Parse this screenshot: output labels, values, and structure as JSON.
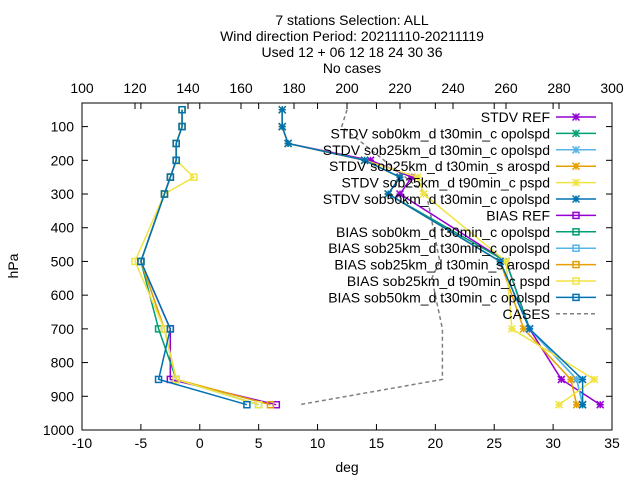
{
  "chart_data": {
    "type": "line",
    "title_lines": [
      "7 stations Selection: ALL",
      "Wind direction  Period: 20211110-20211119",
      "Used 12 + 06 12 18 24 30 36",
      "No cases"
    ],
    "xlabel": "deg",
    "ylabel": "hPa",
    "xlim": [
      -10,
      35
    ],
    "ylim": [
      1000,
      30
    ],
    "y_reversed": true,
    "top_axis": {
      "label": "CASES",
      "lim": [
        100,
        300
      ],
      "ticks": [
        100,
        120,
        140,
        160,
        180,
        200,
        220,
        240,
        260,
        280,
        300
      ]
    },
    "xticks": [
      -10,
      -5,
      0,
      5,
      10,
      15,
      20,
      25,
      30,
      35
    ],
    "yticks": [
      100,
      200,
      300,
      400,
      500,
      600,
      700,
      800,
      900,
      1000
    ],
    "legend_position": "top-right",
    "levels": [
      50,
      100,
      150,
      200,
      250,
      300,
      500,
      700,
      850,
      925
    ],
    "series": [
      {
        "name": "STDV REF",
        "kind": "stdv",
        "color": "#9400d3",
        "marker": "cross-x",
        "values": [
          7.0,
          7.0,
          7.5,
          14.5,
          18.0,
          17.0,
          26.0,
          28.0,
          30.7,
          34.0
        ]
      },
      {
        "name": "STDV sob0km_d t30min_c opolspd",
        "kind": "stdv",
        "color": "#009e73",
        "marker": "cross-x",
        "values": [
          7.0,
          7.0,
          7.5,
          14.0,
          17.0,
          16.0,
          26.0,
          28.0,
          32.0,
          32.5
        ]
      },
      {
        "name": "STDV sob25km_d t30min_c opolspd",
        "kind": "stdv",
        "color": "#56b4e9",
        "marker": "cross-x",
        "values": [
          7.0,
          7.0,
          7.5,
          14.0,
          17.0,
          16.0,
          25.5,
          28.0,
          32.0,
          32.5
        ]
      },
      {
        "name": "STDV sob25km_d t30min_s arospd",
        "kind": "stdv",
        "color": "#e69f00",
        "marker": "cross-x",
        "values": [
          7.0,
          7.0,
          7.5,
          14.0,
          17.0,
          16.0,
          25.5,
          27.5,
          31.5,
          32.0
        ]
      },
      {
        "name": "STDV sob25km_d t90min_c pspd",
        "kind": "stdv",
        "color": "#f0e442",
        "marker": "cross-x",
        "values": [
          7.0,
          7.0,
          7.5,
          14.0,
          18.5,
          19.0,
          26.0,
          26.5,
          33.5,
          30.5
        ]
      },
      {
        "name": "STDV sob50km_d t30min_c opolspd",
        "kind": "stdv",
        "color": "#0072b2",
        "marker": "cross-x",
        "values": [
          7.0,
          7.0,
          7.5,
          14.0,
          17.0,
          16.0,
          25.5,
          28.0,
          32.5,
          32.5
        ]
      },
      {
        "name": "BIAS REF",
        "kind": "bias",
        "color": "#9400d3",
        "marker": "square",
        "values": [
          -1.5,
          -1.5,
          -2.0,
          -2.0,
          -2.5,
          -3.0,
          -5.0,
          -2.5,
          -2.5,
          6.5
        ]
      },
      {
        "name": "BIAS sob0km_d t30min_c opolspd",
        "kind": "bias",
        "color": "#009e73",
        "marker": "square",
        "values": [
          -1.5,
          -1.5,
          -2.0,
          -2.0,
          -2.5,
          -3.0,
          -5.0,
          -3.5,
          -2.0,
          5.0
        ]
      },
      {
        "name": "BIAS sob25km_d t30min_c opolspd",
        "kind": "bias",
        "color": "#56b4e9",
        "marker": "square",
        "values": [
          -1.5,
          -1.5,
          -2.0,
          -2.0,
          -2.5,
          -3.0,
          -5.0,
          -3.0,
          -2.0,
          5.0
        ]
      },
      {
        "name": "BIAS sob25km_d t30min_s arospd",
        "kind": "bias",
        "color": "#e69f00",
        "marker": "square",
        "values": [
          -1.5,
          -1.5,
          -2.0,
          -2.0,
          -2.5,
          -3.0,
          -5.0,
          -3.0,
          -2.0,
          6.0
        ]
      },
      {
        "name": "BIAS sob25km_d t90min_c pspd",
        "kind": "bias",
        "color": "#f0e442",
        "marker": "square",
        "values": [
          -1.5,
          -1.5,
          -2.0,
          -2.0,
          -0.5,
          -3.0,
          -5.5,
          -3.0,
          -2.0,
          5.0
        ]
      },
      {
        "name": "BIAS sob50km_d t30min_c opolspd",
        "kind": "bias",
        "color": "#0072b2",
        "marker": "square",
        "values": [
          -1.5,
          -1.5,
          -2.0,
          -2.0,
          -2.5,
          -3.0,
          -5.0,
          -2.5,
          -3.5,
          4.0
        ]
      }
    ],
    "cases": {
      "name": "CASES",
      "color": "#808080",
      "dash": true,
      "levels": [
        50,
        100,
        300,
        500,
        550,
        700,
        850,
        925
      ],
      "values": [
        200,
        198,
        230,
        235,
        232,
        236,
        236,
        182
      ]
    }
  }
}
